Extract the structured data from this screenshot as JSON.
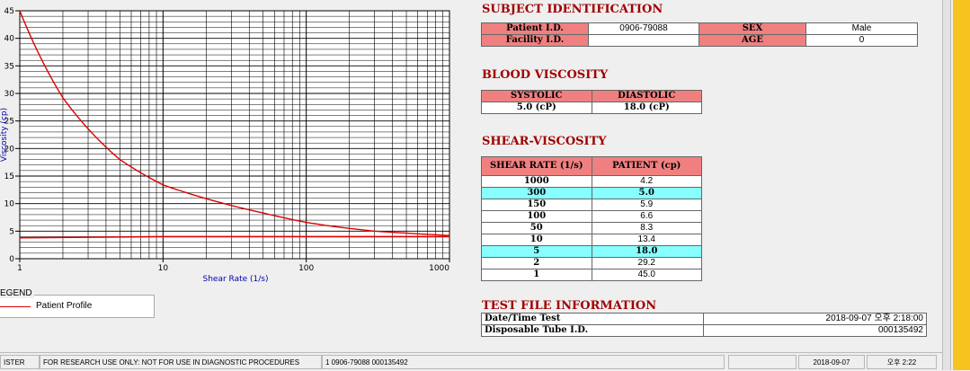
{
  "chart_data": {
    "type": "line",
    "title": "",
    "xlabel": "Shear Rate (1/s)",
    "ylabel": "Viscosity (cp)",
    "xscale": "log",
    "xlim": [
      1,
      1000
    ],
    "ylim": [
      0,
      45
    ],
    "x_ticks": [
      "1",
      "10",
      "100",
      "1000"
    ],
    "y_ticks": [
      "0",
      "5",
      "10",
      "15",
      "20",
      "25",
      "30",
      "35",
      "40",
      "45"
    ],
    "grid": true,
    "series": [
      {
        "name": "Patient Profile",
        "color": "#dd0000",
        "x": [
          1,
          2,
          5,
          10,
          50,
          100,
          150,
          300,
          1000
        ],
        "y": [
          45.0,
          29.2,
          18.0,
          13.4,
          8.3,
          6.6,
          5.9,
          5.0,
          4.2
        ]
      },
      {
        "color": "#dd0000",
        "x": [
          1,
          10,
          1000
        ],
        "y": [
          3.8,
          4.0,
          4.0
        ]
      }
    ]
  },
  "legend": {
    "title": "EGEND",
    "item_label": "Patient Profile",
    "item_color": "#dd0000"
  },
  "subject": {
    "title": "SUBJECT IDENTIFICATION",
    "patient_id_label": "Patient I.D.",
    "patient_id": "0906-79088",
    "facility_id_label": "Facility I.D.",
    "facility_id": "",
    "sex_label": "SEX",
    "sex": "Male",
    "age_label": "AGE",
    "age": "0"
  },
  "blood": {
    "title": "BLOOD VISCOSITY",
    "systolic_label": "SYSTOLIC",
    "systolic": "5.0 (cP)",
    "diastolic_label": "DIASTOLIC",
    "diastolic": "18.0 (cP)"
  },
  "shear": {
    "title": "SHEAR-VISCOSITY",
    "col_rate": "SHEAR RATE (1/s)",
    "col_patient": "PATIENT (cp)",
    "rows": [
      {
        "rate": "1000",
        "patient": "4.2",
        "highlight": false
      },
      {
        "rate": "300",
        "patient": "5.0",
        "highlight": true
      },
      {
        "rate": "150",
        "patient": "5.9",
        "highlight": false
      },
      {
        "rate": "100",
        "patient": "6.6",
        "highlight": false
      },
      {
        "rate": "50",
        "patient": "8.3",
        "highlight": false
      },
      {
        "rate": "10",
        "patient": "13.4",
        "highlight": false
      },
      {
        "rate": "5",
        "patient": "18.0",
        "highlight": true
      },
      {
        "rate": "2",
        "patient": "29.2",
        "highlight": false
      },
      {
        "rate": "1",
        "patient": "45.0",
        "highlight": false
      }
    ]
  },
  "testfile": {
    "title": "TEST FILE INFORMATION",
    "datetime_label": "Date/Time Test",
    "datetime": "2018-09-07   오후 2:18:00",
    "tube_label": "Disposable Tube I.D.",
    "tube": "000135492"
  },
  "status": {
    "c1": "ISTER",
    "c2": "FOR RESEARCH USE ONLY: NOT FOR USE IN DIAGNOSTIC PROCEDURES",
    "c3": "1  0906-79088  000135492",
    "c4": "",
    "date": "2018-09-07",
    "time": "오후 2:22"
  },
  "colors": {
    "header_bg": "#f08080",
    "highlight_bg": "#88ffff",
    "title": "#a00000",
    "accent_bar": "#f7c31f"
  }
}
